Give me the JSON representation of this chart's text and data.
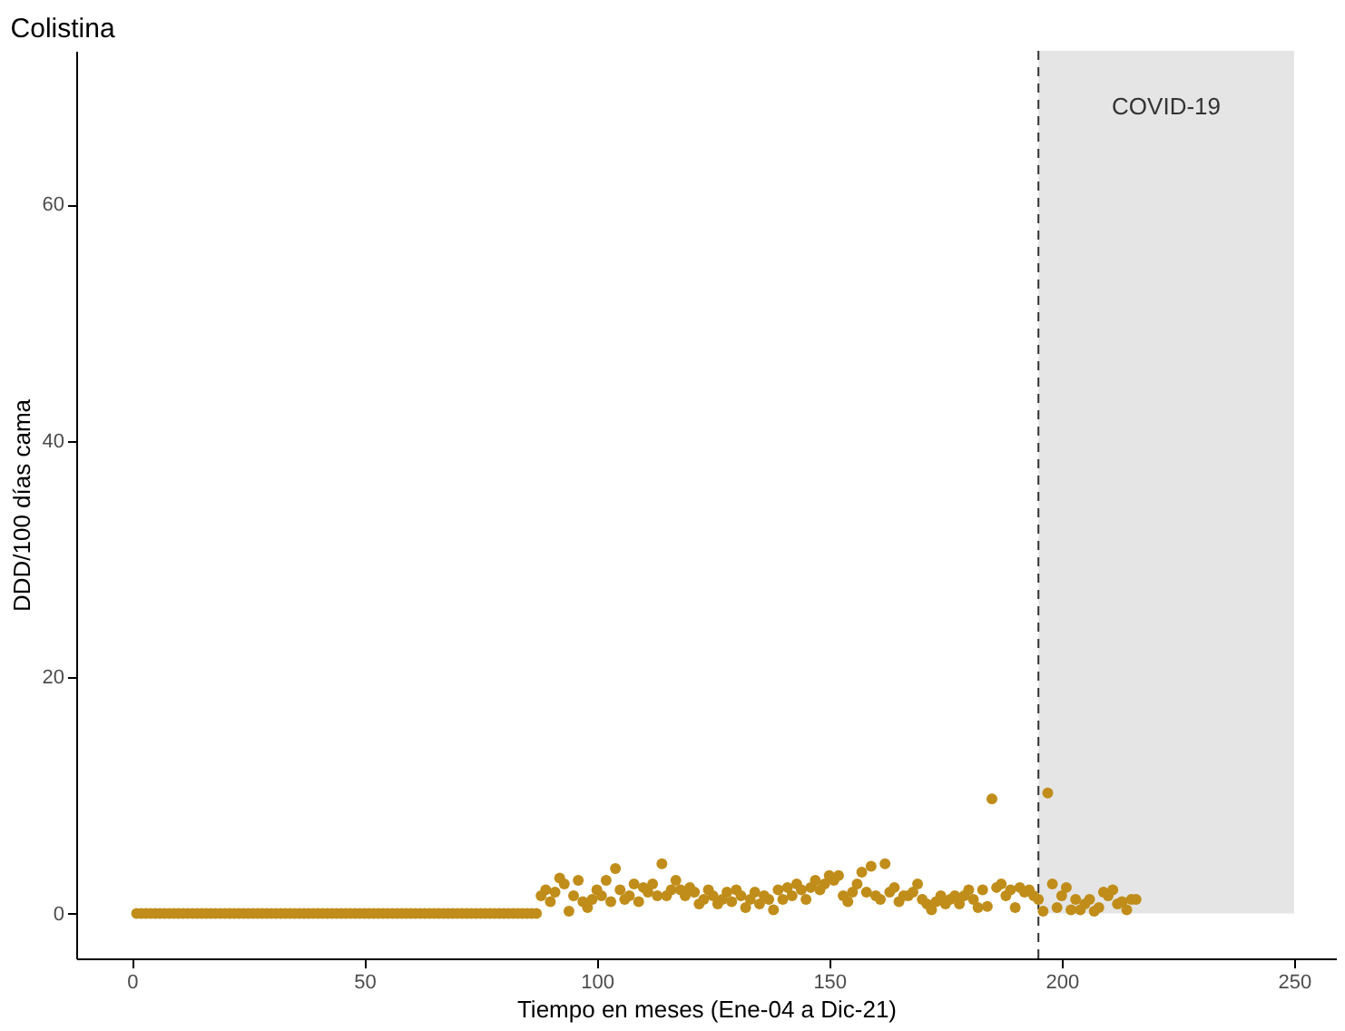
{
  "chart_data": {
    "type": "scatter",
    "title": "Colistina",
    "xlabel": "Tiempo en meses (Ene-04 a Dic-21)",
    "ylabel": "DDD/100 días cama",
    "x": [
      1,
      2,
      3,
      4,
      5,
      6,
      7,
      8,
      9,
      10,
      11,
      12,
      13,
      14,
      15,
      16,
      17,
      18,
      19,
      20,
      21,
      22,
      23,
      24,
      25,
      26,
      27,
      28,
      29,
      30,
      31,
      32,
      33,
      34,
      35,
      36,
      37,
      38,
      39,
      40,
      41,
      42,
      43,
      44,
      45,
      46,
      47,
      48,
      49,
      50,
      51,
      52,
      53,
      54,
      55,
      56,
      57,
      58,
      59,
      60,
      61,
      62,
      63,
      64,
      65,
      66,
      67,
      68,
      69,
      70,
      71,
      72,
      73,
      74,
      75,
      76,
      77,
      78,
      79,
      80,
      81,
      82,
      83,
      84,
      85,
      86,
      87,
      88,
      89,
      90,
      91,
      92,
      93,
      94,
      95,
      96,
      97,
      98,
      99,
      100,
      101,
      102,
      103,
      104,
      105,
      106,
      107,
      108,
      109,
      110,
      111,
      112,
      113,
      114,
      115,
      116,
      117,
      118,
      119,
      120,
      121,
      122,
      123,
      124,
      125,
      126,
      127,
      128,
      129,
      130,
      131,
      132,
      133,
      134,
      135,
      136,
      137,
      138,
      139,
      140,
      141,
      142,
      143,
      144,
      145,
      146,
      147,
      148,
      149,
      150,
      151,
      152,
      153,
      154,
      155,
      156,
      157,
      158,
      159,
      160,
      161,
      162,
      163,
      164,
      165,
      166,
      167,
      168,
      169,
      170,
      171,
      172,
      173,
      174,
      175,
      176,
      177,
      178,
      179,
      180,
      181,
      182,
      183,
      184,
      185,
      186,
      187,
      188,
      189,
      190,
      191,
      192,
      193,
      194,
      195,
      196,
      197,
      198,
      199,
      200,
      201,
      202,
      203,
      204,
      205,
      206,
      207,
      208,
      209,
      210,
      211,
      212,
      213,
      214,
      215,
      216
    ],
    "series": [
      {
        "color": "#c08d1a",
        "values": [
          0,
          0,
          0,
          0,
          0,
          0,
          0,
          0,
          0,
          0,
          0,
          0,
          0,
          0,
          0,
          0,
          0,
          0,
          0,
          0,
          0,
          0,
          0,
          0,
          0,
          0,
          0,
          0,
          0,
          0,
          0,
          0,
          0,
          0,
          0,
          0,
          0,
          0,
          0,
          0,
          0,
          0,
          0,
          0,
          0,
          0,
          0,
          0,
          0,
          0,
          0,
          0,
          0,
          0,
          0,
          0,
          0,
          0,
          0,
          0,
          0,
          0,
          0,
          0,
          0,
          0,
          0,
          0,
          0,
          0,
          0,
          0,
          0,
          0,
          0,
          0,
          0,
          0,
          0,
          0,
          0,
          0,
          0,
          0,
          0,
          0,
          0,
          1.5,
          2,
          1,
          1.8,
          3,
          2.5,
          0.2,
          1.5,
          2.8,
          1,
          0.5,
          1.2,
          2,
          1.5,
          2.8,
          1,
          3.8,
          2,
          1.2,
          1.5,
          2.5,
          1,
          2.2,
          1.8,
          2.5,
          1.5,
          4.2,
          1.5,
          2,
          2.8,
          2,
          1.5,
          2.2,
          1.8,
          0.8,
          1.2,
          2,
          1.5,
          0.8,
          1.2,
          1.8,
          1,
          2,
          1.5,
          0.5,
          1.2,
          1.8,
          0.8,
          1.5,
          1.2,
          0.3,
          2,
          1.2,
          2.2,
          1.5,
          2.5,
          2,
          1.2,
          2.2,
          2.8,
          2,
          2.5,
          3.2,
          2.8,
          3.2,
          1.5,
          1,
          1.8,
          2.5,
          3.5,
          1.8,
          4,
          1.5,
          1.2,
          4.2,
          1.8,
          2.2,
          1,
          1.5,
          1.5,
          1.8,
          2.5,
          1.2,
          0.8,
          0.3,
          1,
          1.5,
          0.8,
          1.2,
          1.5,
          0.8,
          1.5,
          2,
          1.2,
          0.5,
          2,
          0.6,
          9.7,
          2.2,
          2.5,
          1.5,
          2,
          0.5,
          2.2,
          1.8,
          2,
          1.5,
          1.2,
          0.2,
          10.2,
          2.5,
          0.5,
          1.5,
          2.2,
          0.3,
          1.2,
          0.3,
          0.8,
          1.2,
          0.2,
          0.5,
          1.8,
          1.5,
          2,
          0.8,
          1,
          0.3,
          1.2,
          1.2
        ]
      }
    ],
    "xlim": [
      -12,
      259
    ],
    "ylim": [
      -3.8,
      73
    ],
    "xticks": [
      0,
      50,
      100,
      150,
      200,
      250
    ],
    "yticks": [
      0,
      20,
      40,
      60
    ],
    "ref_lines": [
      {
        "axis": "x",
        "value": 195,
        "label": null,
        "line_style": "dashed",
        "color": "#333333"
      }
    ],
    "bands": [
      {
        "axis": "x",
        "from": 195,
        "to": 250,
        "label": "COVID-19",
        "color": "#e5e5e5"
      }
    ],
    "grid": false,
    "marker": "circle"
  }
}
